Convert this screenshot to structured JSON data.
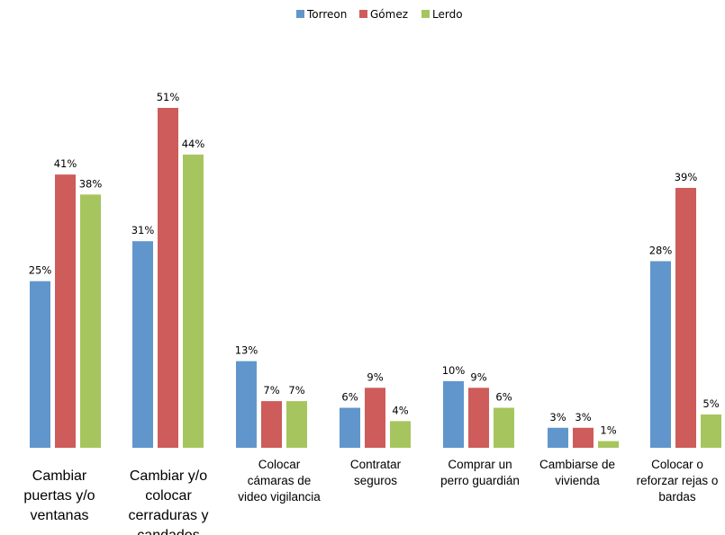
{
  "chart_data": {
    "type": "bar",
    "categories": [
      "Cambiar puertas y/o ventanas",
      "Cambiar y/o colocar cerraduras y candados",
      "Colocar cámaras de video vigilancia",
      "Contratar seguros",
      "Comprar un perro guardián",
      "Cambiarse de vivienda",
      "Colocar o reforzar rejas o bardas"
    ],
    "category_label_lines": [
      [
        "Cambiar",
        "puertas y/o",
        "ventanas"
      ],
      [
        "Cambiar y/o",
        "colocar",
        "cerraduras y",
        "candados"
      ],
      [
        "Colocar",
        "cámaras de",
        "video vigilancia"
      ],
      [
        "Contratar",
        "seguros"
      ],
      [
        "Comprar un",
        "perro guardián"
      ],
      [
        "Cambiarse de",
        "vivienda"
      ],
      [
        "Colocar o",
        "reforzar rejas o",
        "bardas"
      ]
    ],
    "series": [
      {
        "name": "Torreon",
        "color": "#6096CC",
        "values": [
          25,
          31,
          13,
          6,
          10,
          3,
          28
        ],
        "labels": [
          "25%",
          "31%",
          "13%",
          "6%",
          "10%",
          "3%",
          "28%"
        ]
      },
      {
        "name": "Gómez",
        "color": "#CD5C5A",
        "values": [
          41,
          51,
          7,
          9,
          9,
          3,
          39
        ],
        "labels": [
          "41%",
          "51%",
          "7%",
          "9%",
          "9%",
          "3%",
          "39%"
        ]
      },
      {
        "name": "Lerdo",
        "color": "#A6C55E",
        "values": [
          38,
          44,
          7,
          4,
          6,
          1,
          5
        ],
        "labels": [
          "38%",
          "44%",
          "7%",
          "4%",
          "6%",
          "1%",
          "5%"
        ]
      }
    ],
    "ylim": [
      0,
      51
    ],
    "grid": false,
    "legend_position": "top-center",
    "title": "",
    "xlabel": "",
    "ylabel": ""
  }
}
